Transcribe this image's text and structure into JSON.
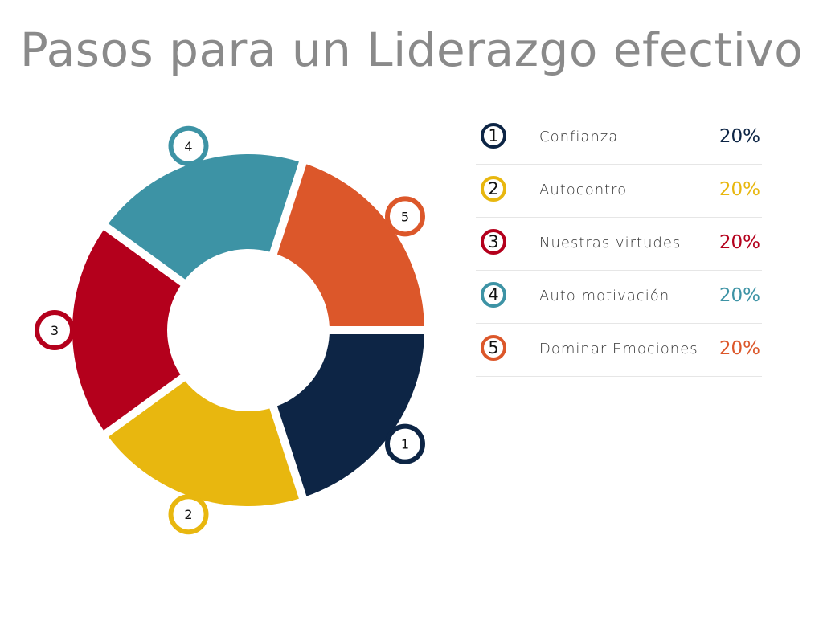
{
  "title": "Pasos para un Liderazgo efectivo",
  "chart_data": {
    "type": "pie",
    "variant": "donut",
    "categories": [
      "Confianza",
      "Autocontrol",
      "Nuestras virtudes",
      "Auto motivación",
      "Dominar Emociones"
    ],
    "markers": [
      "1",
      "2",
      "3",
      "4",
      "5"
    ],
    "values": [
      20,
      20,
      20,
      20,
      20
    ],
    "value_labels": [
      "20%",
      "20%",
      "20%",
      "20%",
      "20%"
    ],
    "colors": [
      "#0d2545",
      "#e8b70f",
      "#b4001c",
      "#3d93a5",
      "#dc572a"
    ],
    "legend_position": "right"
  }
}
